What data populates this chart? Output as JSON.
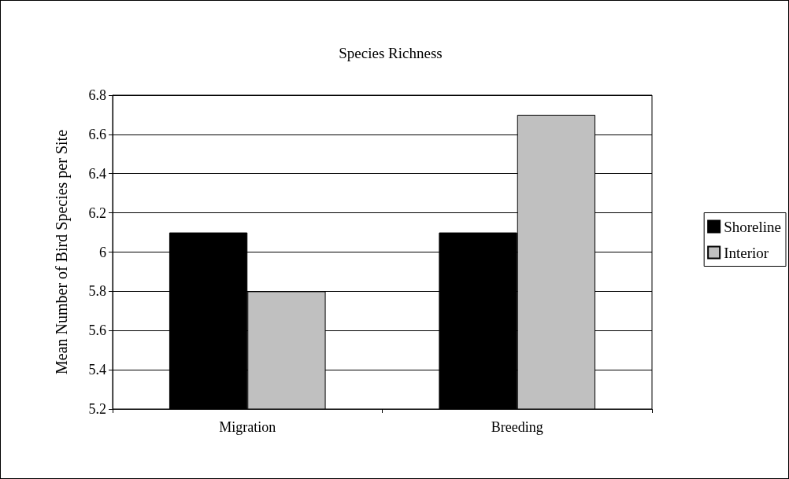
{
  "chart_data": {
    "type": "bar",
    "title": "Species Richness",
    "ylabel": "Mean Number of Bird Species per Site",
    "categories": [
      "Migration",
      "Breeding"
    ],
    "series": [
      {
        "name": "Shoreline",
        "color": "#000000",
        "values": [
          6.1,
          6.1
        ]
      },
      {
        "name": "Interior",
        "color": "#c0c0c0",
        "values": [
          5.8,
          6.7
        ]
      }
    ],
    "ylim": [
      5.2,
      6.8
    ],
    "yticks": [
      5.2,
      5.4,
      5.6,
      5.8,
      6,
      6.2,
      6.4,
      6.6,
      6.8
    ],
    "grid": "y",
    "legend": "right"
  }
}
